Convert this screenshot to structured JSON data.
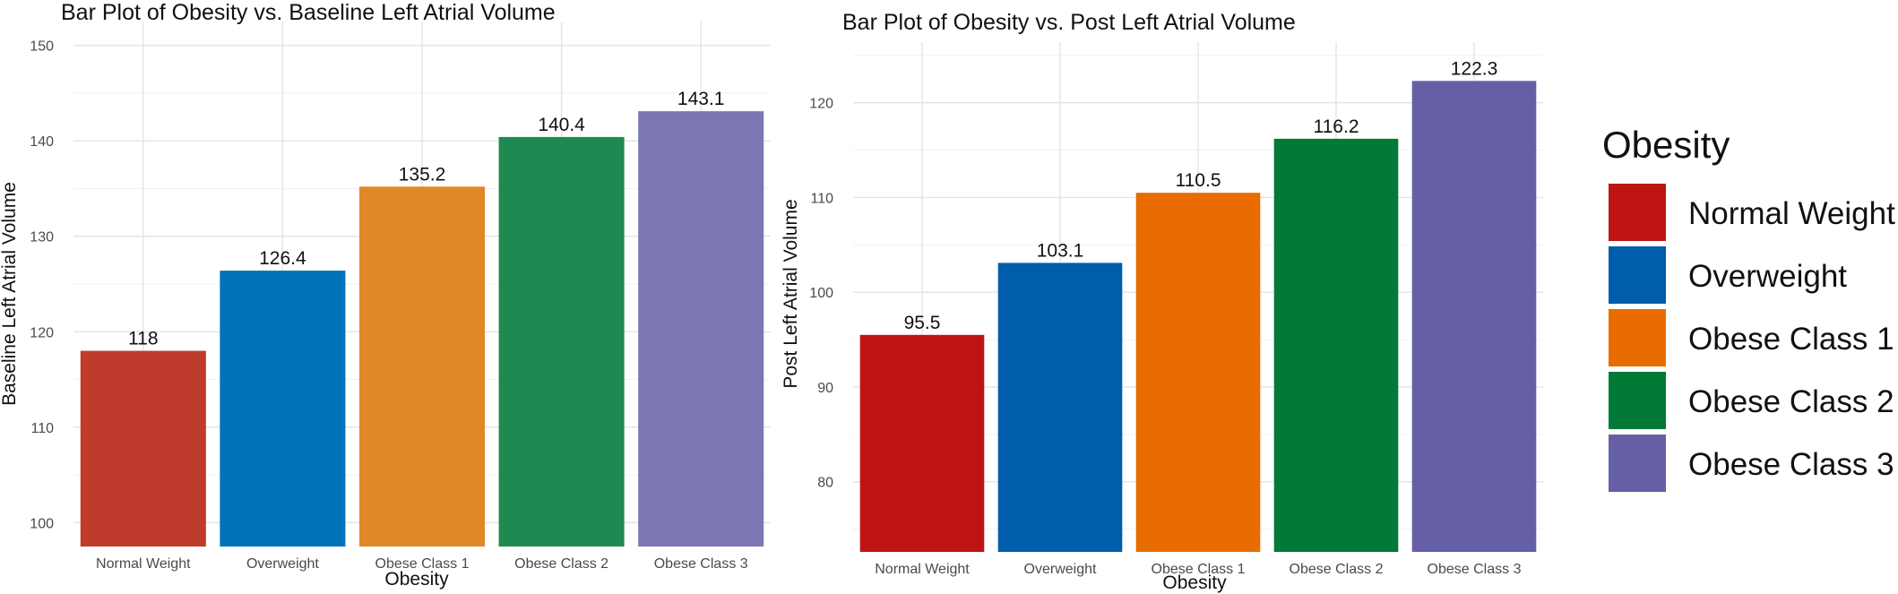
{
  "chart_data": [
    {
      "type": "bar",
      "title": "Bar Plot of Obesity vs. Baseline Left Atrial Volume",
      "xlabel": "Obesity",
      "ylabel": "Baseline Left Atrial Volume",
      "categories": [
        "Normal Weight",
        "Overweight",
        "Obese Class 1",
        "Obese Class 2",
        "Obese Class 3"
      ],
      "values": [
        118,
        126.4,
        135.2,
        140.4,
        143.1
      ],
      "data_labels": [
        "118",
        "126.4",
        "135.2",
        "140.4",
        "143.1"
      ],
      "colors": [
        "#BF3B2C",
        "#0072B8",
        "#E08727",
        "#1E8A51",
        "#7A77B3"
      ],
      "ylim": [
        97.5,
        152.5
      ],
      "yticks": [
        100,
        110,
        120,
        130,
        140,
        150
      ],
      "grid": true
    },
    {
      "type": "bar",
      "title": "Bar Plot of Obesity vs. Post Left Atrial Volume",
      "xlabel": "Obesity",
      "ylabel": "Post Left Atrial Volume",
      "categories": [
        "Normal Weight",
        "Overweight",
        "Obese Class 1",
        "Obese Class 2",
        "Obese Class 3"
      ],
      "values": [
        95.5,
        103.1,
        110.5,
        116.2,
        122.3
      ],
      "data_labels": [
        "95.5",
        "103.1",
        "110.5",
        "116.2",
        "122.3"
      ],
      "colors": [
        "#BE1414",
        "#005DAC",
        "#E86C00",
        "#007A36",
        "#655FA6"
      ],
      "ylim": [
        72.6,
        126.4
      ],
      "yticks": [
        80,
        90,
        100,
        110,
        120
      ],
      "grid": true
    }
  ],
  "legend": {
    "title": "Obesity",
    "placement": "right",
    "items": [
      {
        "label": "Normal Weight",
        "color": "#BE1414"
      },
      {
        "label": "Overweight",
        "color": "#005DAC"
      },
      {
        "label": "Obese Class 1",
        "color": "#E86C00"
      },
      {
        "label": "Obese Class 2",
        "color": "#007A36"
      },
      {
        "label": "Obese Class 3",
        "color": "#655FA6"
      }
    ]
  }
}
